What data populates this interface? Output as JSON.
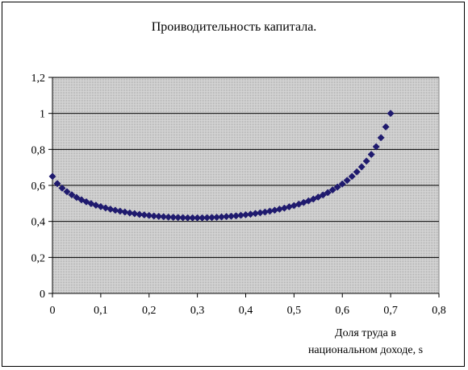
{
  "chart_data": {
    "type": "scatter",
    "title": "Проиводительность капитала.",
    "xlabel": [
      "Доля труда в",
      "национальном доходе, s"
    ],
    "ylabel": "",
    "xlim": [
      0,
      0.8
    ],
    "ylim": [
      0,
      1.2
    ],
    "xticks": [
      "0",
      "0,1",
      "0,2",
      "0,3",
      "0,4",
      "0,5",
      "0,6",
      "0,7",
      "0,8"
    ],
    "yticks": [
      "0",
      "0,2",
      "0,4",
      "0,6",
      "0,8",
      "1",
      "1,2"
    ],
    "grid": true,
    "legend": "none",
    "colors": {
      "marker": "#1f1a6e",
      "plot_bg": "#cfcfcf",
      "grid": "#000000"
    },
    "series": [
      {
        "marker": "diamond",
        "x": [
          0,
          0.01,
          0.02,
          0.03,
          0.04,
          0.05,
          0.06,
          0.07,
          0.08,
          0.09,
          0.1,
          0.11,
          0.12,
          0.13,
          0.14,
          0.15,
          0.16,
          0.17,
          0.18,
          0.19,
          0.2,
          0.21,
          0.22,
          0.23,
          0.24,
          0.25,
          0.26,
          0.27,
          0.28,
          0.29,
          0.3,
          0.31,
          0.32,
          0.33,
          0.34,
          0.35,
          0.36,
          0.37,
          0.38,
          0.39,
          0.4,
          0.41,
          0.42,
          0.43,
          0.44,
          0.45,
          0.46,
          0.47,
          0.48,
          0.49,
          0.5,
          0.51,
          0.52,
          0.53,
          0.54,
          0.55,
          0.56,
          0.57,
          0.58,
          0.59,
          0.6,
          0.61,
          0.62,
          0.63,
          0.64,
          0.65,
          0.66,
          0.67,
          0.68,
          0.69,
          0.7
        ],
        "y": [
          0.65,
          0.61,
          0.585,
          0.565,
          0.548,
          0.533,
          0.52,
          0.509,
          0.499,
          0.49,
          0.482,
          0.475,
          0.468,
          0.462,
          0.457,
          0.452,
          0.447,
          0.443,
          0.439,
          0.436,
          0.433,
          0.43,
          0.428,
          0.426,
          0.424,
          0.423,
          0.422,
          0.421,
          0.42,
          0.42,
          0.42,
          0.42,
          0.421,
          0.422,
          0.423,
          0.425,
          0.427,
          0.429,
          0.431,
          0.434,
          0.437,
          0.44,
          0.444,
          0.448,
          0.452,
          0.457,
          0.462,
          0.468,
          0.474,
          0.481,
          0.488,
          0.496,
          0.505,
          0.514,
          0.524,
          0.535,
          0.547,
          0.56,
          0.575,
          0.591,
          0.608,
          0.628,
          0.65,
          0.675,
          0.703,
          0.735,
          0.772,
          0.815,
          0.865,
          0.925,
          1.0
        ]
      }
    ]
  }
}
